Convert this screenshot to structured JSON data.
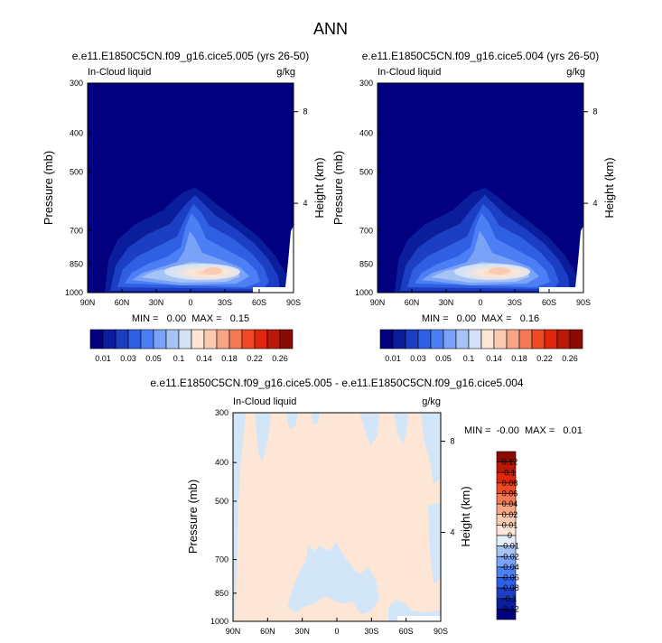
{
  "main_title": "ANN",
  "panels": [
    {
      "title": "e.e11.E1850C5CN.f09_g16.cice5.005 (yrs 26-50)",
      "left_label": "In-Cloud liquid",
      "right_label": "g/kg",
      "ylabel": "Pressure (mb)",
      "ylabel_right": "Height (km)",
      "stats": "MIN =   0.00  MAX =   0.15"
    },
    {
      "title": "e.e11.E1850C5CN.f09_g16.cice5.004 (yrs 26-50)",
      "left_label": "In-Cloud liquid",
      "right_label": "g/kg",
      "ylabel": "Pressure (mb)",
      "ylabel_right": "Height (km)",
      "stats": "MIN =   0.00  MAX =   0.16"
    },
    {
      "title": "e.e11.E1850C5CN.f09_g16.cice5.005 - e.e11.E1850C5CN.f09_g16.cice5.004",
      "left_label": "In-Cloud liquid",
      "right_label": "g/kg",
      "ylabel": "Pressure (mb)",
      "ylabel_right": "Height (km)",
      "stats": "MIN =  -0.00  MAX =   0.01"
    }
  ],
  "chart_data": [
    {
      "type": "heatmap",
      "x_ticks": [
        "90N",
        "60N",
        "30N",
        "0",
        "30S",
        "60S",
        "90S"
      ],
      "y_ticks": [
        "300",
        "400",
        "500",
        "700",
        "850",
        "1000"
      ],
      "y_ticks_right": [
        "8",
        "4"
      ],
      "colorbar_labels": [
        "0.01",
        "0.03",
        "0.05",
        "0.1",
        "0.14",
        "0.18",
        "0.22",
        "0.26"
      ],
      "colorbar_colors": [
        "#02007f",
        "#0a1e9c",
        "#1c3ec2",
        "#2f5fe2",
        "#4c7ff5",
        "#7aa2f6",
        "#a6c3f5",
        "#d3e2f7",
        "#fde6d6",
        "#fbcbb1",
        "#f8a585",
        "#f47a55",
        "#ef4a23",
        "#e0270d",
        "#bb1808",
        "#8a0b04"
      ]
    },
    {
      "type": "heatmap",
      "x_ticks": [
        "90N",
        "60N",
        "30N",
        "0",
        "30S",
        "60S",
        "90S"
      ],
      "y_ticks": [
        "300",
        "400",
        "500",
        "700",
        "850",
        "1000"
      ],
      "y_ticks_right": [
        "8",
        "4"
      ],
      "colorbar_labels": [
        "0.01",
        "0.03",
        "0.05",
        "0.1",
        "0.14",
        "0.18",
        "0.22",
        "0.26"
      ],
      "colorbar_colors": [
        "#02007f",
        "#0a1e9c",
        "#1c3ec2",
        "#2f5fe2",
        "#4c7ff5",
        "#7aa2f6",
        "#a6c3f5",
        "#d3e2f7",
        "#fde6d6",
        "#fbcbb1",
        "#f8a585",
        "#f47a55",
        "#ef4a23",
        "#e0270d",
        "#bb1808",
        "#8a0b04"
      ]
    },
    {
      "type": "heatmap",
      "x_ticks": [
        "90N",
        "60N",
        "30N",
        "0",
        "30S",
        "60S",
        "90S"
      ],
      "y_ticks": [
        "300",
        "400",
        "500",
        "700",
        "850",
        "1000"
      ],
      "y_ticks_right": [
        "8",
        "4"
      ],
      "colorbar_labels": [
        "0.12",
        "0.1",
        "0.08",
        "0.06",
        "0.04",
        "0.02",
        "0.01",
        "0",
        "-0.01",
        "-0.02",
        "-0.04",
        "-0.06",
        "-0.08",
        "-0.1",
        "-0.12"
      ],
      "colorbar_colors": [
        "#8a0b04",
        "#bb1808",
        "#e0270d",
        "#ef4a23",
        "#f47a55",
        "#f8a585",
        "#fbcbb1",
        "#fde6d6",
        "#e6eefa",
        "#a6c3f5",
        "#7aa2f6",
        "#4c7ff5",
        "#2f5fe2",
        "#1c3ec2",
        "#0a1e9c",
        "#02007f"
      ]
    }
  ]
}
